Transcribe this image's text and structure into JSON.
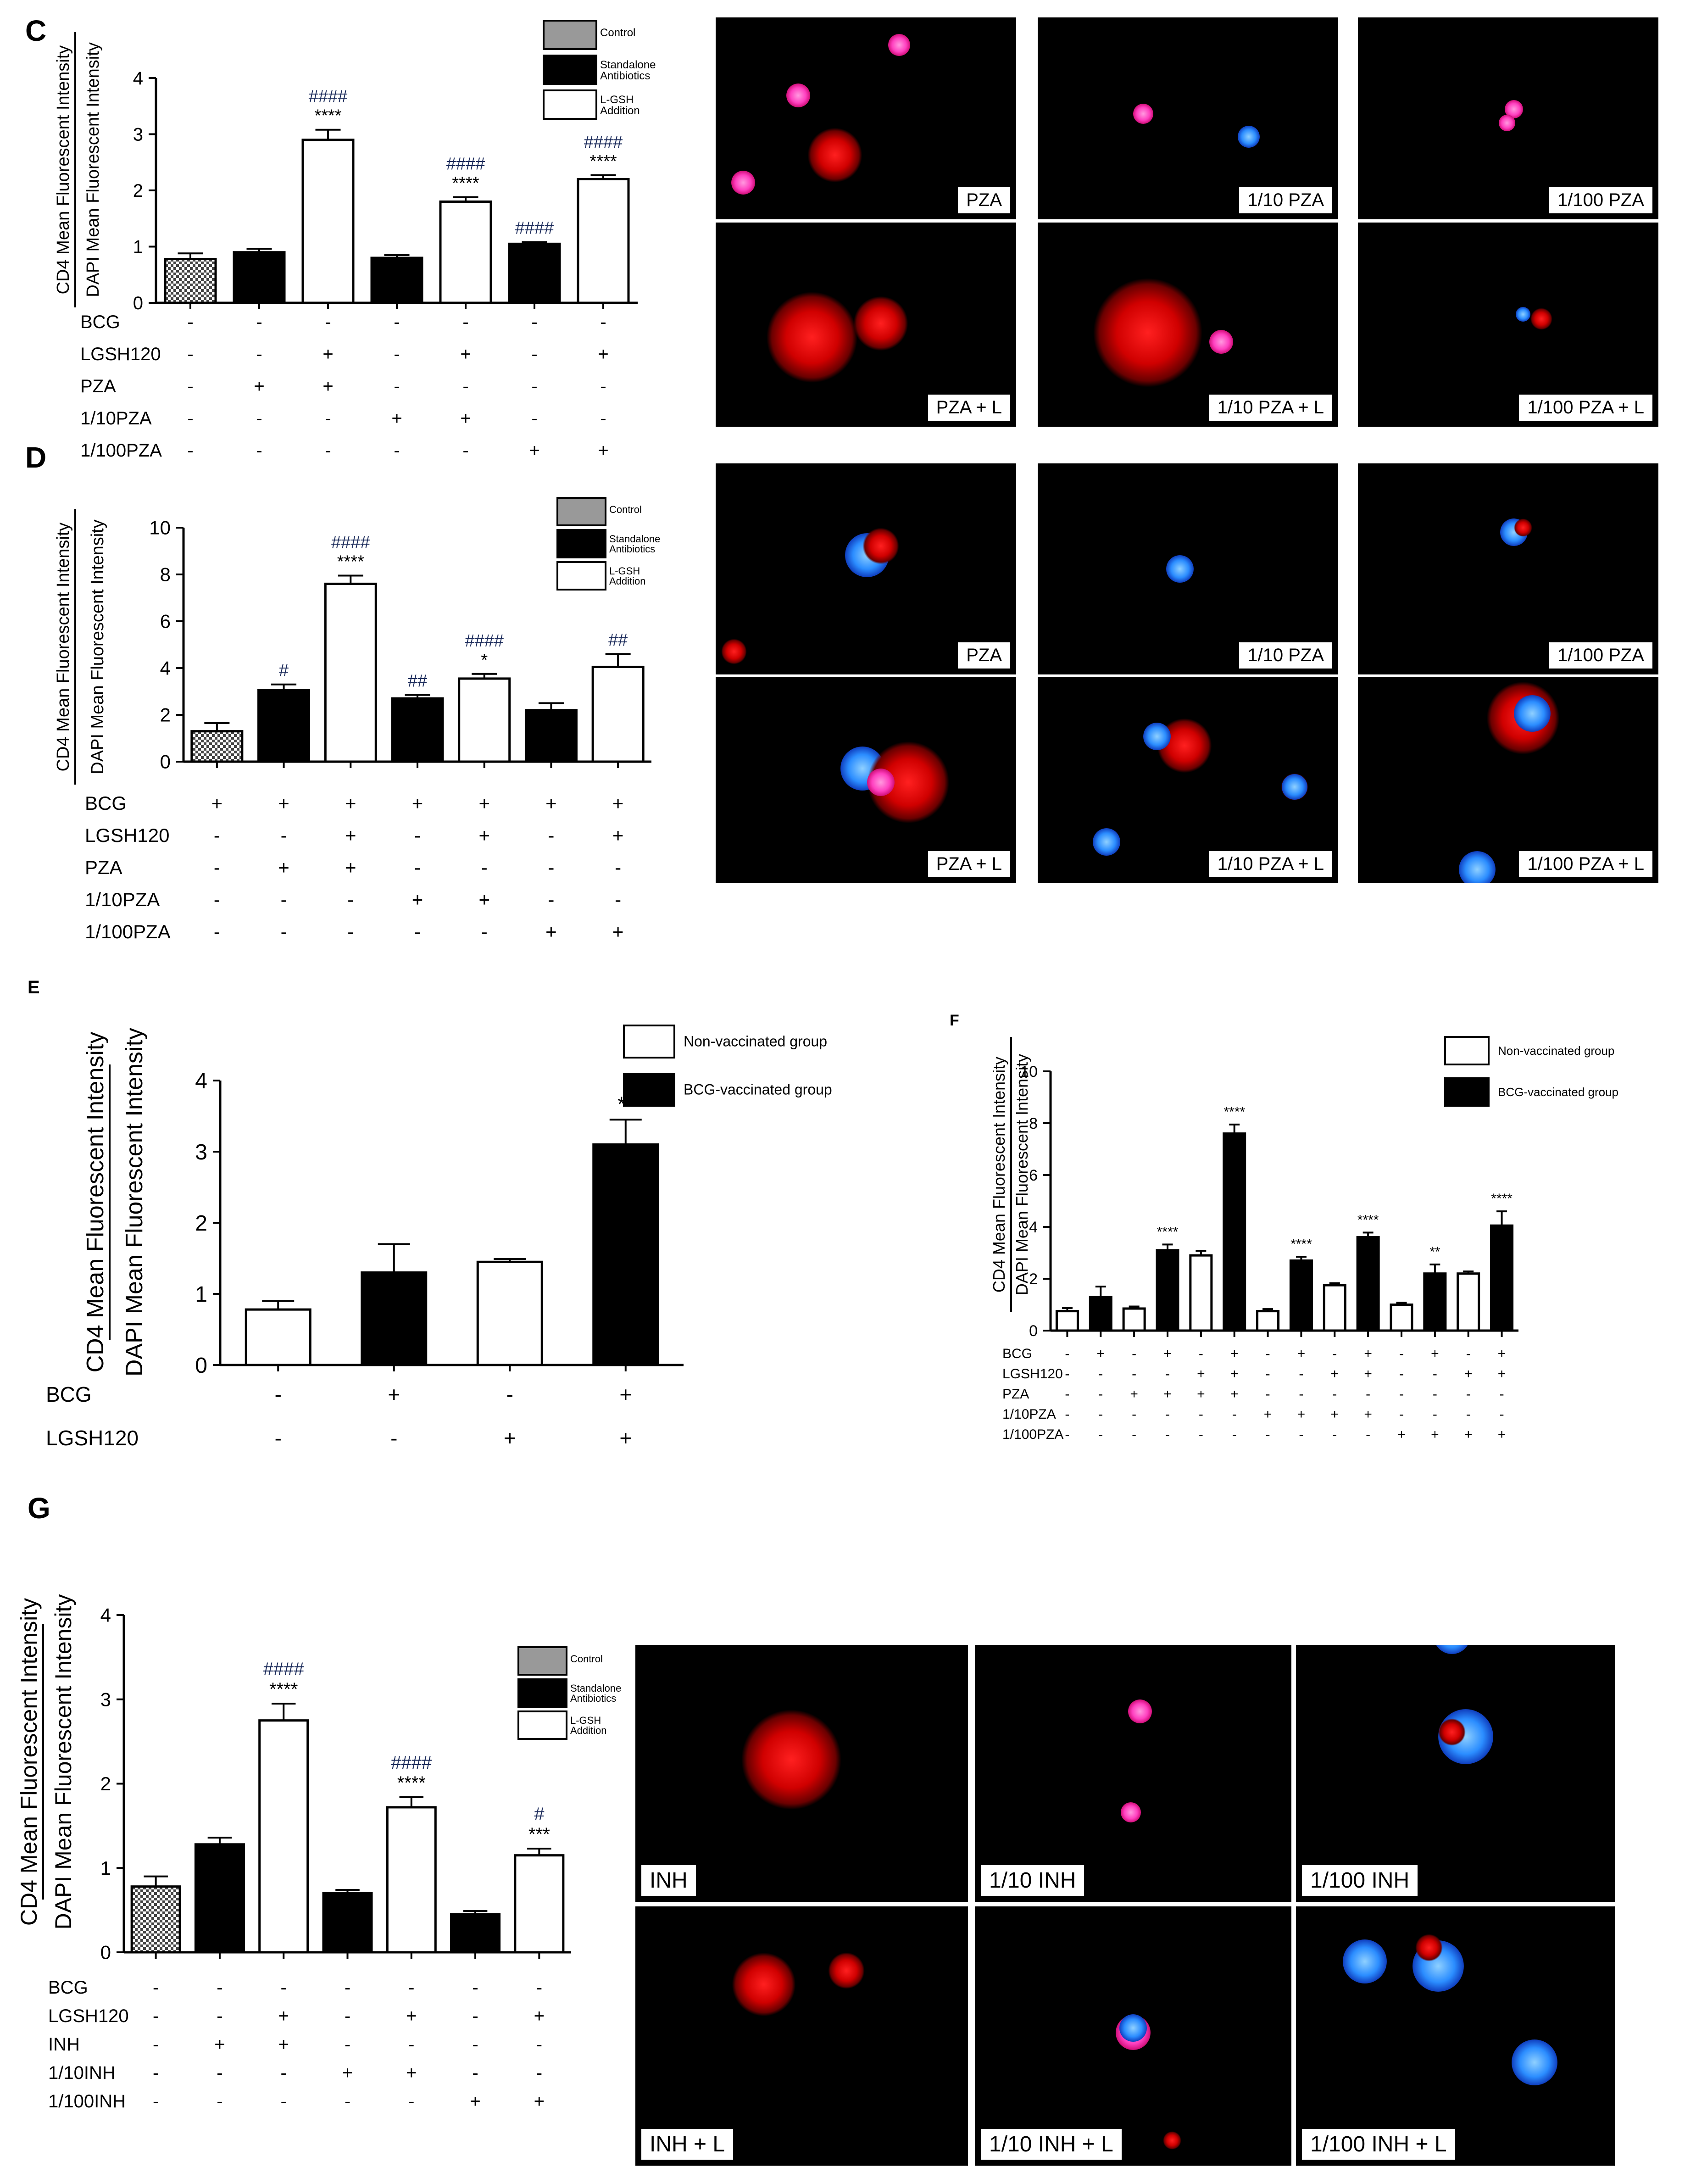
{
  "panels": {
    "C": {
      "letter": "C"
    },
    "D": {
      "letter": "D"
    },
    "E": {
      "letter": "E"
    },
    "F": {
      "letter": "F"
    },
    "G": {
      "letter": "G"
    }
  },
  "ylabels": {
    "cd4": "CD4 Mean Fluorescent Intensity",
    "dapi": "DAPI Mean Fluorescent Intensity"
  },
  "legend_three": {
    "control": "Control",
    "standalone": "Standalone Antibiotics",
    "lgsh": "L-GSH Addition"
  },
  "legend_two": {
    "nonvax": "Non-vaccinated group",
    "bcg": "BCG-vaccinated group"
  },
  "micro_labels": {
    "C": [
      "PZA",
      "1/10 PZA",
      "1/100 PZA",
      "PZA + L",
      "1/10 PZA + L",
      "1/100 PZA + L"
    ],
    "D": [
      "PZA",
      "1/10 PZA",
      "1/100 PZA",
      "PZA + L",
      "1/10 PZA + L",
      "1/100 PZA + L"
    ],
    "G": [
      "INH",
      "1/10 INH",
      "1/100 INH",
      "INH + L",
      "1/10 INH + L",
      "1/100 INH + L"
    ]
  },
  "chart_data": [
    {
      "panel": "C",
      "type": "bar",
      "ylim": [
        0,
        4
      ],
      "yticks": [
        "0",
        "1",
        "2",
        "3",
        "4"
      ],
      "values": [
        0.78,
        0.9,
        2.9,
        0.8,
        1.8,
        1.05,
        2.2
      ],
      "errors": [
        0.1,
        0.06,
        0.18,
        0.05,
        0.08,
        0.03,
        0.07
      ],
      "fills": [
        "control",
        "standalone",
        "lgsh",
        "standalone",
        "lgsh",
        "standalone",
        "lgsh"
      ],
      "stars": [
        "",
        "",
        "****",
        "",
        "****",
        "",
        "****"
      ],
      "hashes": [
        "",
        "",
        "####",
        "",
        "####",
        "####",
        "####"
      ],
      "rows": [
        {
          "label": "BCG",
          "signs": [
            "-",
            "-",
            "-",
            "-",
            "-",
            "-",
            "-"
          ]
        },
        {
          "label": "LGSH120",
          "signs": [
            "-",
            "-",
            "+",
            "-",
            "+",
            "-",
            "+"
          ]
        },
        {
          "label": "PZA",
          "signs": [
            "-",
            "+",
            "+",
            "-",
            "-",
            "-",
            "-"
          ]
        },
        {
          "label": "1/10PZA",
          "signs": [
            "-",
            "-",
            "-",
            "+",
            "+",
            "-",
            "-"
          ]
        },
        {
          "label": "1/100PZA",
          "signs": [
            "-",
            "-",
            "-",
            "-",
            "-",
            "+",
            "+"
          ]
        }
      ]
    },
    {
      "panel": "D",
      "type": "bar",
      "ylim": [
        0,
        10
      ],
      "yticks": [
        "0",
        "2",
        "4",
        "6",
        "8",
        "10"
      ],
      "values": [
        1.3,
        3.05,
        7.6,
        2.7,
        3.55,
        2.2,
        4.05
      ],
      "errors": [
        0.35,
        0.25,
        0.35,
        0.15,
        0.2,
        0.3,
        0.55
      ],
      "fills": [
        "control",
        "standalone",
        "lgsh",
        "standalone",
        "lgsh",
        "standalone",
        "lgsh"
      ],
      "stars": [
        "",
        "",
        "****",
        "",
        "*",
        "",
        ""
      ],
      "hashes": [
        "",
        "#",
        "####",
        "##",
        "####",
        "",
        "##"
      ],
      "rows": [
        {
          "label": "BCG",
          "signs": [
            "+",
            "+",
            "+",
            "+",
            "+",
            "+",
            "+"
          ]
        },
        {
          "label": "LGSH120",
          "signs": [
            "-",
            "-",
            "+",
            "-",
            "+",
            "-",
            "+"
          ]
        },
        {
          "label": "PZA",
          "signs": [
            "-",
            "+",
            "+",
            "-",
            "-",
            "-",
            "-"
          ]
        },
        {
          "label": "1/10PZA",
          "signs": [
            "-",
            "-",
            "-",
            "+",
            "+",
            "-",
            "-"
          ]
        },
        {
          "label": "1/100PZA",
          "signs": [
            "-",
            "-",
            "-",
            "-",
            "-",
            "+",
            "+"
          ]
        }
      ]
    },
    {
      "panel": "E",
      "type": "bar",
      "ylim": [
        0,
        4
      ],
      "yticks": [
        "0",
        "1",
        "2",
        "3",
        "4"
      ],
      "values": [
        0.78,
        1.3,
        1.45,
        3.1
      ],
      "errors": [
        0.12,
        0.4,
        0.04,
        0.35
      ],
      "fills": [
        "nonvax",
        "bcg",
        "nonvax",
        "bcg"
      ],
      "stars": [
        "",
        "",
        "",
        "**"
      ],
      "rows": [
        {
          "label": "BCG",
          "signs": [
            "-",
            "+",
            "-",
            "+"
          ]
        },
        {
          "label": "LGSH120",
          "signs": [
            "-",
            "-",
            "+",
            "+"
          ]
        }
      ]
    },
    {
      "panel": "F",
      "type": "bar",
      "ylim": [
        0,
        10
      ],
      "yticks": [
        "0",
        "2",
        "4",
        "6",
        "8",
        "10"
      ],
      "values": [
        0.75,
        1.3,
        0.85,
        3.1,
        2.9,
        7.6,
        0.75,
        2.7,
        1.75,
        3.6,
        1.0,
        2.2,
        2.2,
        4.05
      ],
      "errors": [
        0.12,
        0.4,
        0.08,
        0.22,
        0.18,
        0.35,
        0.08,
        0.15,
        0.08,
        0.18,
        0.08,
        0.35,
        0.08,
        0.55
      ],
      "fills": [
        "nonvax",
        "bcg",
        "nonvax",
        "bcg",
        "nonvax",
        "bcg",
        "nonvax",
        "bcg",
        "nonvax",
        "bcg",
        "nonvax",
        "bcg",
        "nonvax",
        "bcg"
      ],
      "stars": [
        "",
        "",
        "",
        "****",
        "",
        "****",
        "",
        "****",
        "",
        "****",
        "",
        "**",
        "",
        "****"
      ],
      "rows": [
        {
          "label": "BCG",
          "signs": [
            "-",
            "+",
            "-",
            "+",
            "-",
            "+",
            "-",
            "+",
            "-",
            "+",
            "-",
            "+",
            "-",
            "+"
          ]
        },
        {
          "label": "LGSH120",
          "signs": [
            "-",
            "-",
            "-",
            "-",
            "+",
            "+",
            "-",
            "-",
            "+",
            "+",
            "-",
            "-",
            "+",
            "+"
          ]
        },
        {
          "label": "PZA",
          "signs": [
            "-",
            "-",
            "+",
            "+",
            "+",
            "+",
            "-",
            "-",
            "-",
            "-",
            "-",
            "-",
            "-",
            "-"
          ]
        },
        {
          "label": "1/10PZA",
          "signs": [
            "-",
            "-",
            "-",
            "-",
            "-",
            "-",
            "+",
            "+",
            "+",
            "+",
            "-",
            "-",
            "-",
            "-"
          ]
        },
        {
          "label": "1/100PZA",
          "signs": [
            "-",
            "-",
            "-",
            "-",
            "-",
            "-",
            "-",
            "-",
            "-",
            "-",
            "+",
            "+",
            "+",
            "+"
          ]
        }
      ]
    },
    {
      "panel": "G",
      "type": "bar",
      "ylim": [
        0,
        4
      ],
      "yticks": [
        "0",
        "1",
        "2",
        "3",
        "4"
      ],
      "values": [
        0.78,
        1.28,
        2.75,
        0.7,
        1.72,
        0.45,
        1.15
      ],
      "errors": [
        0.12,
        0.08,
        0.2,
        0.04,
        0.12,
        0.04,
        0.08
      ],
      "fills": [
        "control",
        "standalone",
        "lgsh",
        "standalone",
        "lgsh",
        "standalone",
        "lgsh"
      ],
      "stars": [
        "",
        "",
        "****",
        "",
        "****",
        "",
        "***"
      ],
      "hashes": [
        "",
        "",
        "####",
        "",
        "####",
        "",
        "#"
      ],
      "rows": [
        {
          "label": "BCG",
          "signs": [
            "-",
            "-",
            "-",
            "-",
            "-",
            "-",
            "-"
          ]
        },
        {
          "label": "LGSH120",
          "signs": [
            "-",
            "-",
            "+",
            "-",
            "+",
            "-",
            "+"
          ]
        },
        {
          "label": "INH",
          "signs": [
            "-",
            "+",
            "+",
            "-",
            "-",
            "-",
            "-"
          ]
        },
        {
          "label": "1/10INH",
          "signs": [
            "-",
            "-",
            "-",
            "+",
            "+",
            "-",
            "-"
          ]
        },
        {
          "label": "1/100INH",
          "signs": [
            "-",
            "-",
            "-",
            "-",
            "-",
            "+",
            "+"
          ]
        }
      ]
    }
  ]
}
